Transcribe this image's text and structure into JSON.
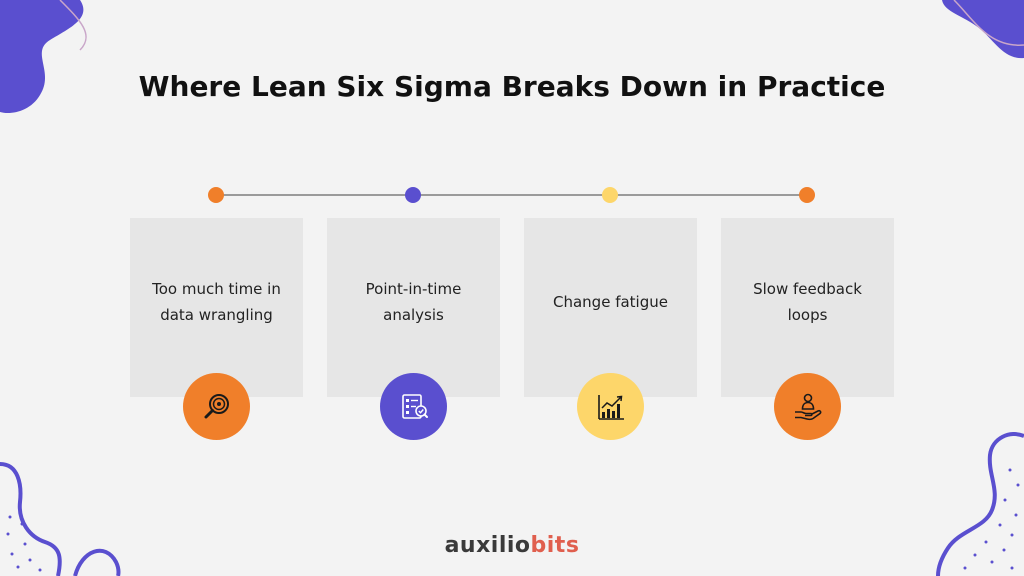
{
  "title": "Where Lean Six Sigma Breaks Down in Practice",
  "steps": [
    {
      "label_line1": "Too much time in",
      "label_line2": "data wrangling",
      "dot_color": "#f07f2a",
      "badge_color": "#f07f2a",
      "icon": "magnifier-target-icon"
    },
    {
      "label_line1": "Point-in-time",
      "label_line2": "analysis",
      "dot_color": "#5a4fcf",
      "badge_color": "#5a4fcf",
      "icon": "checklist-magnifier-icon"
    },
    {
      "label_line1": "Change fatigue",
      "label_line2": "",
      "dot_color": "#fdd66a",
      "badge_color": "#fdd66a",
      "icon": "bar-chart-trend-icon"
    },
    {
      "label_line1": "Slow feedback",
      "label_line2": "loops",
      "dot_color": "#f07f2a",
      "badge_color": "#f07f2a",
      "icon": "hand-person-icon"
    }
  ],
  "logo": {
    "part1": "auxilio",
    "part2": "bits",
    "color1": "#3a3a3a",
    "color2": "#e05f4e"
  },
  "colors": {
    "background": "#f3f3f3",
    "card": "#e6e6e6",
    "line": "#9a9a9a",
    "blob": "#5a4fcf"
  }
}
